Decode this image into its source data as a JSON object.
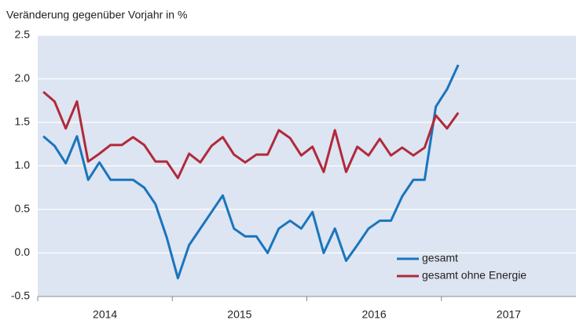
{
  "chart_data": {
    "type": "line",
    "title": "Veränderung gegenüber Vorjahr in %",
    "categories": [
      null,
      null,
      null,
      null,
      null,
      null,
      null,
      null,
      null,
      null,
      null,
      null,
      null,
      null,
      null,
      null,
      null,
      null,
      null,
      null,
      null,
      null,
      null,
      null,
      null,
      null,
      null,
      null,
      null,
      null,
      null,
      null,
      null,
      null,
      null,
      null,
      null,
      null
    ],
    "year_labels": [
      "2014",
      "2015",
      "2016",
      "2017"
    ],
    "series": [
      {
        "name": "gesamt",
        "color": "#1a75bc",
        "values": [
          1.34,
          1.23,
          1.03,
          1.34,
          0.84,
          1.04,
          0.84,
          0.84,
          0.84,
          0.75,
          0.56,
          0.18,
          -0.29,
          0.09,
          0.28,
          0.47,
          0.66,
          0.28,
          0.19,
          0.19,
          0.0,
          0.28,
          0.37,
          0.28,
          0.47,
          0.0,
          0.28,
          -0.09,
          0.09,
          0.28,
          0.37,
          0.37,
          0.65,
          0.84,
          0.84,
          1.68,
          1.88,
          2.16
        ]
      },
      {
        "name": "gesamt ohne Energie",
        "color": "#b02a3a",
        "values": [
          1.85,
          1.74,
          1.43,
          1.74,
          1.05,
          1.14,
          1.24,
          1.24,
          1.33,
          1.24,
          1.05,
          1.05,
          0.86,
          1.14,
          1.04,
          1.23,
          1.33,
          1.13,
          1.04,
          1.13,
          1.13,
          1.41,
          1.32,
          1.12,
          1.22,
          0.93,
          1.41,
          0.93,
          1.22,
          1.12,
          1.31,
          1.12,
          1.21,
          1.12,
          1.21,
          1.58,
          1.43,
          1.61
        ]
      }
    ],
    "ylim": [
      -0.5,
      2.5
    ],
    "yticks": [
      {
        "value": -0.5,
        "label": "-0.5"
      },
      {
        "value": 0,
        "label": "0.0"
      },
      {
        "value": 0.5,
        "label": "0.5"
      },
      {
        "value": 1,
        "label": "1.0"
      },
      {
        "value": 1.5,
        "label": "1.5"
      },
      {
        "value": 2,
        "label": "2.0"
      },
      {
        "value": 2.5,
        "label": "2.5"
      }
    ],
    "grid": true,
    "legend": "lower right"
  }
}
